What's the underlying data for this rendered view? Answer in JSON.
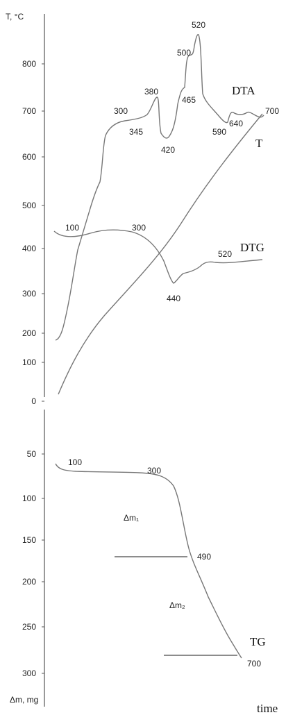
{
  "chart_data": {
    "type": "line",
    "top_panel": {
      "y_title": "T, °C",
      "y_ticks": [
        "800",
        "700",
        "600",
        "500",
        "400",
        "300",
        "200",
        "100",
        "0"
      ],
      "series": [
        {
          "name": "DTA"
        },
        {
          "name": "T"
        },
        {
          "name": "DTG"
        }
      ],
      "annotations": [
        "300",
        "345",
        "380",
        "420",
        "465",
        "500",
        "520",
        "590",
        "640",
        "700",
        "100",
        "300",
        "440",
        "520"
      ]
    },
    "bottom_panel": {
      "y_title": "Δm, mg",
      "y_ticks": [
        "50",
        "100",
        "150",
        "200",
        "250",
        "300"
      ],
      "series": [
        {
          "name": "TG"
        }
      ],
      "annotations": [
        "100",
        "300",
        "490",
        "700"
      ],
      "step_labels": [
        "Δm₁",
        "Δm₂"
      ]
    },
    "x_title": "time"
  }
}
